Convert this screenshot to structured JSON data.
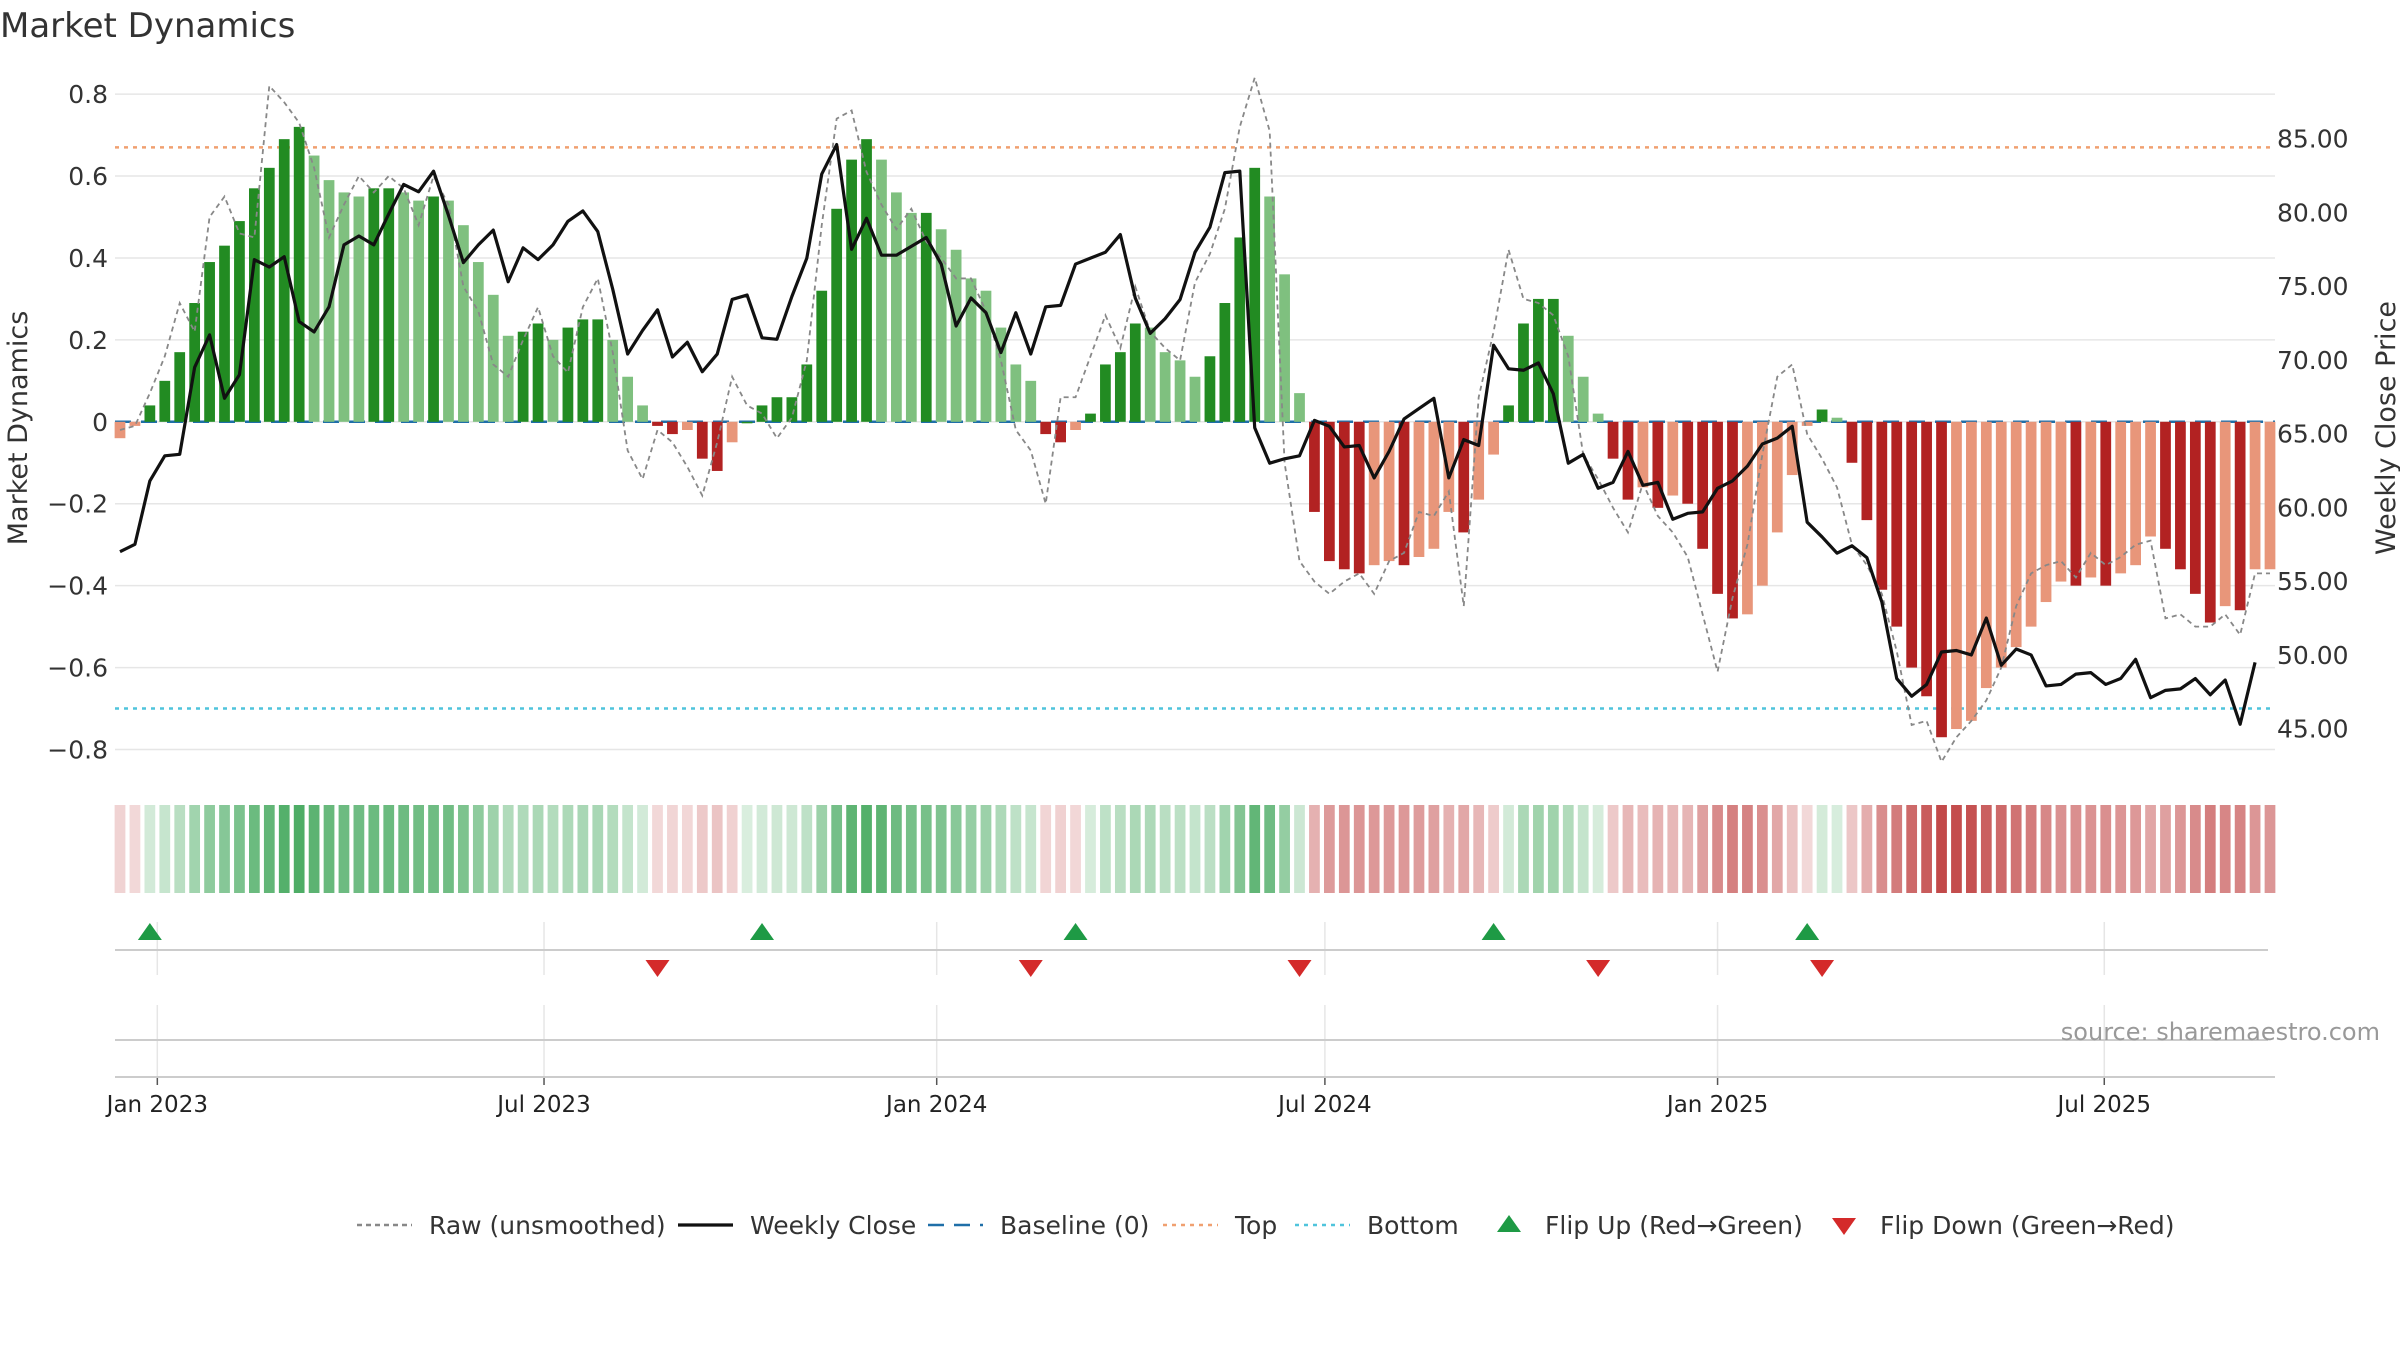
{
  "chart_data": {
    "type": "bar",
    "title": "Market Dynamics",
    "ylabel": "Market Dynamics",
    "y2label": "Weekly Close Price",
    "source": "source: sharemaestro.com",
    "ylim": [
      -0.85,
      0.81
    ],
    "y2lim": [
      42.2,
      88.3
    ],
    "yticks": [
      "0.8",
      "0.6",
      "0.4",
      "0.2",
      "0",
      "−0.2",
      "−0.4",
      "−0.6",
      "−0.8"
    ],
    "y2ticks": [
      "85.00",
      "80.00",
      "75.00",
      "70.00",
      "65.00",
      "60.00",
      "55.00",
      "50.00",
      "45.00"
    ],
    "xticks": [
      {
        "label": "Jan 2023",
        "week": 2.5
      },
      {
        "label": "Jul 2023",
        "week": 28.4
      },
      {
        "label": "Jan 2024",
        "week": 54.7
      },
      {
        "label": "Jul 2024",
        "week": 80.7
      },
      {
        "label": "Jan 2025",
        "week": 107.0
      },
      {
        "label": "Jul 2025",
        "week": 132.9
      }
    ],
    "top_level": 0.67,
    "bottom_level": -0.7,
    "baseline": 0,
    "weeks": 145,
    "series": [
      {
        "name": "Market Dynamics",
        "type": "bar",
        "values": [
          -0.04,
          -0.01,
          0.04,
          0.1,
          0.17,
          0.29,
          0.39,
          0.43,
          0.49,
          0.57,
          0.62,
          0.69,
          0.72,
          0.65,
          0.59,
          0.56,
          0.55,
          0.57,
          0.57,
          0.56,
          0.54,
          0.55,
          0.54,
          0.48,
          0.39,
          0.31,
          0.21,
          0.22,
          0.24,
          0.2,
          0.23,
          0.25,
          0.25,
          0.2,
          0.11,
          0.04,
          -0.01,
          -0.03,
          -0.02,
          -0.09,
          -0.12,
          -0.05,
          0.0,
          0.04,
          0.06,
          0.06,
          0.14,
          0.32,
          0.52,
          0.64,
          0.69,
          0.64,
          0.56,
          0.51,
          0.51,
          0.47,
          0.42,
          0.35,
          0.32,
          0.23,
          0.14,
          0.1,
          -0.03,
          -0.05,
          -0.02,
          0.02,
          0.14,
          0.17,
          0.24,
          0.23,
          0.17,
          0.15,
          0.11,
          0.16,
          0.29,
          0.45,
          0.62,
          0.55,
          0.36,
          0.07,
          -0.22,
          -0.34,
          -0.36,
          -0.37,
          -0.35,
          -0.34,
          -0.35,
          -0.33,
          -0.31,
          -0.22,
          -0.27,
          -0.19,
          -0.08,
          0.04,
          0.24,
          0.3,
          0.3,
          0.21,
          0.11,
          0.02,
          -0.09,
          -0.19,
          -0.16,
          -0.21,
          -0.18,
          -0.2,
          -0.31,
          -0.42,
          -0.48,
          -0.47,
          -0.4,
          -0.27,
          -0.13,
          -0.01,
          0.03,
          0.01,
          -0.1,
          -0.24,
          -0.41,
          -0.5,
          -0.6,
          -0.67,
          -0.77,
          -0.75,
          -0.73,
          -0.65,
          -0.6,
          -0.55,
          -0.5,
          -0.44,
          -0.39,
          -0.4,
          -0.38,
          -0.4,
          -0.37,
          -0.35,
          -0.28,
          -0.31,
          -0.36,
          -0.42,
          -0.49,
          -0.45,
          -0.46,
          -0.36,
          -0.36
        ]
      },
      {
        "name": "Raw (unsmoothed)",
        "type": "line",
        "values": [
          -0.02,
          -0.01,
          0.07,
          0.16,
          0.29,
          0.22,
          0.5,
          0.55,
          0.46,
          0.45,
          0.82,
          0.78,
          0.73,
          0.62,
          0.45,
          0.53,
          0.6,
          0.56,
          0.6,
          0.57,
          0.48,
          0.6,
          0.53,
          0.33,
          0.27,
          0.14,
          0.11,
          0.2,
          0.28,
          0.16,
          0.12,
          0.28,
          0.35,
          0.17,
          -0.07,
          -0.14,
          -0.02,
          -0.05,
          -0.11,
          -0.18,
          -0.05,
          0.11,
          0.04,
          0.02,
          -0.04,
          0.01,
          0.15,
          0.48,
          0.74,
          0.76,
          0.61,
          0.53,
          0.47,
          0.52,
          0.44,
          0.4,
          0.35,
          0.35,
          0.27,
          0.15,
          -0.02,
          -0.07,
          -0.2,
          0.06,
          0.06,
          0.16,
          0.26,
          0.18,
          0.33,
          0.22,
          0.18,
          0.15,
          0.34,
          0.41,
          0.52,
          0.72,
          0.84,
          0.71,
          -0.1,
          -0.34,
          -0.39,
          -0.42,
          -0.39,
          -0.37,
          -0.42,
          -0.34,
          -0.32,
          -0.22,
          -0.23,
          -0.17,
          -0.45,
          0.06,
          0.22,
          0.42,
          0.3,
          0.29,
          0.26,
          0.16,
          -0.08,
          -0.14,
          -0.21,
          -0.27,
          -0.15,
          -0.23,
          -0.27,
          -0.33,
          -0.47,
          -0.61,
          -0.43,
          -0.3,
          -0.08,
          0.11,
          0.14,
          -0.03,
          -0.09,
          -0.16,
          -0.3,
          -0.35,
          -0.42,
          -0.56,
          -0.74,
          -0.73,
          -0.83,
          -0.77,
          -0.73,
          -0.68,
          -0.6,
          -0.45,
          -0.37,
          -0.35,
          -0.34,
          -0.38,
          -0.32,
          -0.35,
          -0.33,
          -0.3,
          -0.29,
          -0.48,
          -0.47,
          -0.5,
          -0.5,
          -0.47,
          -0.52,
          -0.37,
          -0.37
        ]
      },
      {
        "name": "Weekly Close",
        "type": "line",
        "axis": "right",
        "values": [
          57.0,
          57.5,
          61.8,
          63.5,
          63.6,
          69.5,
          71.7,
          67.4,
          69.0,
          76.8,
          76.3,
          77.0,
          72.6,
          71.9,
          73.6,
          77.8,
          78.4,
          77.8,
          79.9,
          81.9,
          81.4,
          82.8,
          79.8,
          76.6,
          77.8,
          78.8,
          75.3,
          77.6,
          76.8,
          77.8,
          79.4,
          80.1,
          78.7,
          74.8,
          70.4,
          72.0,
          73.4,
          70.2,
          71.2,
          69.2,
          70.4,
          74.1,
          74.4,
          71.5,
          71.4,
          74.3,
          76.9,
          82.6,
          84.6,
          77.5,
          79.6,
          77.1,
          77.1,
          77.7,
          78.3,
          76.5,
          72.3,
          74.2,
          73.2,
          70.5,
          73.2,
          70.4,
          73.6,
          73.7,
          76.5,
          76.9,
          77.3,
          78.5,
          74.2,
          71.8,
          72.8,
          74.1,
          77.3,
          79.0,
          82.7,
          82.8,
          65.4,
          63.0,
          63.3,
          63.5,
          65.9,
          65.5,
          64.1,
          64.2,
          62.0,
          63.8,
          66.0,
          66.7,
          67.4,
          62.0,
          64.6,
          64.2,
          71.0,
          69.4,
          69.3,
          69.8,
          67.7,
          63.0,
          63.6,
          61.3,
          61.7,
          63.8,
          61.5,
          61.7,
          59.2,
          59.6,
          59.7,
          61.3,
          61.8,
          62.8,
          64.3,
          64.7,
          65.5,
          59.0,
          58.0,
          56.9,
          57.4,
          56.6,
          53.6,
          48.4,
          47.2,
          48.0,
          50.2,
          50.3,
          50.0,
          52.5,
          49.3,
          50.4,
          50.0,
          47.9,
          48.0,
          48.7,
          48.8,
          48.0,
          48.4,
          49.7,
          47.1,
          47.6,
          47.7,
          48.4,
          47.3,
          48.3,
          45.3,
          49.5
        ]
      }
    ],
    "flip_up_weeks": [
      2,
      43,
      64,
      92,
      113
    ],
    "flip_down_weeks": [
      36,
      61,
      79,
      99,
      114
    ],
    "legend": [
      {
        "label": "Raw (unsmoothed)",
        "kind": "dash-line",
        "color": "#888888"
      },
      {
        "label": "Weekly Close",
        "kind": "line",
        "color": "#111111"
      },
      {
        "label": "Baseline (0)",
        "kind": "dash-line",
        "color": "#1f6fa8"
      },
      {
        "label": "Top",
        "kind": "dot-line",
        "color": "#f0a070"
      },
      {
        "label": "Bottom",
        "kind": "dot-line",
        "color": "#4fc4dc"
      },
      {
        "label": "Flip Up (Red→Green)",
        "kind": "tri-up",
        "color": "#1e9a45"
      },
      {
        "label": "Flip Down (Green→Red)",
        "kind": "tri-down",
        "color": "#d42a2a"
      }
    ],
    "legend_position": "bottom",
    "grid": true,
    "colors": {
      "strong_green": "#228b22",
      "light_green": "#7fc07f",
      "strong_red": "#b22222",
      "light_red": "#e8967a",
      "heat_green": "#2e9e4a",
      "heat_red": "#bb3333"
    }
  }
}
